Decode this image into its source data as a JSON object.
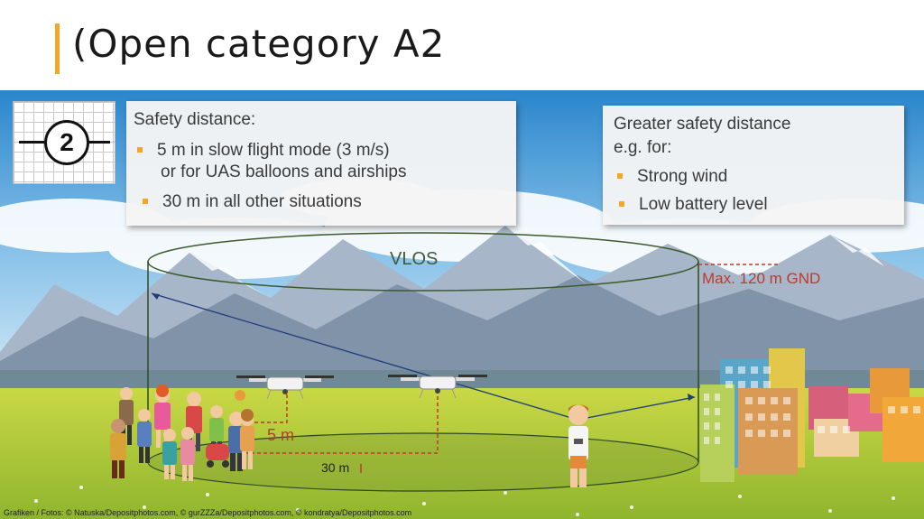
{
  "title": "(Open category A2",
  "badge": {
    "number": "2"
  },
  "safety_panel": {
    "heading": "Safety distance:",
    "bullet1_line1": "5 m in slow flight mode (3 m/s)",
    "bullet1_line2": "or for UAS balloons and airships",
    "bullet2": "30 m in all other situations"
  },
  "greater_panel": {
    "heading_line1": "Greater safety distance",
    "heading_line2": "e.g. for:",
    "bullet1": "Strong wind",
    "bullet2": "Low battery level"
  },
  "diagram": {
    "vlos_label": "VLOS",
    "max_height_label": "Max. 120 m GND",
    "near_distance_label": "5 m",
    "far_distance_label": "30 m"
  },
  "credits": "Grafiken / Fotos: © Natuska/Depositphotos.com, © gurZZZa/Depositphotos.com, © kondratya/Depositphotos.com",
  "colors": {
    "accent": "#f5a623",
    "warning_red": "#c0392b",
    "sky": "#2f8fd0",
    "grass": "#b8c93a"
  },
  "icons": [
    "drone-icon",
    "people-group-icon",
    "pilot-icon",
    "buildings-icon",
    "mountains-icon"
  ]
}
